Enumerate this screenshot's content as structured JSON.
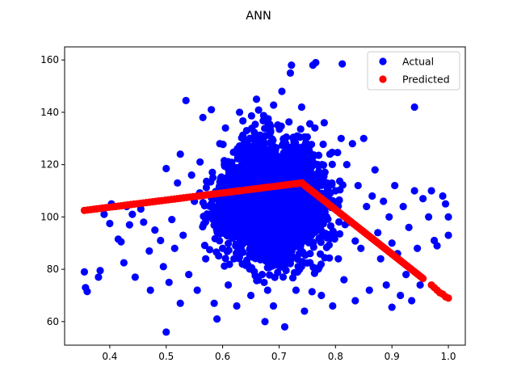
{
  "chart_data": {
    "type": "scatter",
    "title": "ANN",
    "xlabel": "",
    "ylabel": "",
    "xlim": [
      0.32,
      1.03
    ],
    "ylim": [
      51,
      165
    ],
    "x_ticks": [
      "0.4",
      "0.5",
      "0.6",
      "0.7",
      "0.8",
      "0.9",
      "1.0"
    ],
    "y_ticks": [
      "60",
      "80",
      "100",
      "120",
      "140",
      "160"
    ],
    "grid": false,
    "legend_position": "top-right",
    "series": [
      {
        "name": "Actual",
        "color": "#0000ff",
        "points_note": "dense cloud; representative sample",
        "points": [
          [
            0.355,
            79
          ],
          [
            0.357,
            73
          ],
          [
            0.36,
            71.5
          ],
          [
            0.38,
            77
          ],
          [
            0.383,
            79.5
          ],
          [
            0.39,
            101
          ],
          [
            0.4,
            97.5
          ],
          [
            0.403,
            105
          ],
          [
            0.415,
            91.5
          ],
          [
            0.42,
            90.5
          ],
          [
            0.425,
            82.5
          ],
          [
            0.43,
            104
          ],
          [
            0.435,
            97
          ],
          [
            0.44,
            101
          ],
          [
            0.445,
            77
          ],
          [
            0.455,
            103
          ],
          [
            0.46,
            98
          ],
          [
            0.47,
            87
          ],
          [
            0.472,
            72
          ],
          [
            0.48,
            95
          ],
          [
            0.49,
            91
          ],
          [
            0.495,
            81
          ],
          [
            0.5,
            56
          ],
          [
            0.5,
            118.5
          ],
          [
            0.505,
            75
          ],
          [
            0.51,
            99
          ],
          [
            0.515,
            88
          ],
          [
            0.52,
            113
          ],
          [
            0.525,
            67
          ],
          [
            0.525,
            124
          ],
          [
            0.53,
            93
          ],
          [
            0.535,
            144.5
          ],
          [
            0.54,
            78
          ],
          [
            0.545,
            116
          ],
          [
            0.55,
            106
          ],
          [
            0.555,
            72
          ],
          [
            0.56,
            121
          ],
          [
            0.565,
            138
          ],
          [
            0.57,
            84
          ],
          [
            0.575,
            100
          ],
          [
            0.58,
            141
          ],
          [
            0.585,
            67
          ],
          [
            0.59,
            61
          ],
          [
            0.595,
            128
          ],
          [
            0.6,
            88
          ],
          [
            0.6,
            110
          ],
          [
            0.605,
            134
          ],
          [
            0.61,
            74
          ],
          [
            0.615,
            96
          ],
          [
            0.62,
            119
          ],
          [
            0.625,
            66
          ],
          [
            0.63,
            140
          ],
          [
            0.635,
            82
          ],
          [
            0.64,
            104
          ],
          [
            0.645,
            126
          ],
          [
            0.65,
            70
          ],
          [
            0.655,
            92
          ],
          [
            0.66,
            145
          ],
          [
            0.665,
            115
          ],
          [
            0.67,
            78
          ],
          [
            0.675,
            60
          ],
          [
            0.68,
            136
          ],
          [
            0.685,
            98
          ],
          [
            0.69,
            66
          ],
          [
            0.695,
            122
          ],
          [
            0.7,
            88
          ],
          [
            0.705,
            148
          ],
          [
            0.71,
            58
          ],
          [
            0.715,
            108
          ],
          [
            0.72,
            155
          ],
          [
            0.722,
            158
          ],
          [
            0.725,
            130
          ],
          [
            0.73,
            72
          ],
          [
            0.735,
            94
          ],
          [
            0.74,
            142
          ],
          [
            0.745,
            64
          ],
          [
            0.75,
            118
          ],
          [
            0.755,
            86
          ],
          [
            0.76,
            158
          ],
          [
            0.765,
            159
          ],
          [
            0.77,
            102
          ],
          [
            0.775,
            70
          ],
          [
            0.78,
            136
          ],
          [
            0.785,
            92
          ],
          [
            0.79,
            124
          ],
          [
            0.795,
            66
          ],
          [
            0.8,
            110
          ],
          [
            0.805,
            84
          ],
          [
            0.81,
            130
          ],
          [
            0.812,
            158.5
          ],
          [
            0.815,
            76
          ],
          [
            0.82,
            120
          ],
          [
            0.825,
            98
          ],
          [
            0.83,
            128
          ],
          [
            0.835,
            68
          ],
          [
            0.84,
            112
          ],
          [
            0.845,
            88
          ],
          [
            0.85,
            130
          ],
          [
            0.855,
            104
          ],
          [
            0.86,
            72
          ],
          [
            0.865,
            108
          ],
          [
            0.87,
            118
          ],
          [
            0.875,
            94
          ],
          [
            0.88,
            84
          ],
          [
            0.885,
            106
          ],
          [
            0.89,
            74
          ],
          [
            0.895,
            100
          ],
          [
            0.9,
            65.5
          ],
          [
            0.9,
            90
          ],
          [
            0.905,
            112
          ],
          [
            0.91,
            86
          ],
          [
            0.915,
            70
          ],
          [
            0.92,
            104
          ],
          [
            0.925,
            78
          ],
          [
            0.93,
            96
          ],
          [
            0.935,
            68
          ],
          [
            0.94,
            142
          ],
          [
            0.94,
            110
          ],
          [
            0.945,
            88
          ],
          [
            0.95,
            74
          ],
          [
            0.955,
            107
          ],
          [
            0.965,
            100
          ],
          [
            0.97,
            110
          ],
          [
            0.975,
            91
          ],
          [
            0.98,
            89
          ],
          [
            0.99,
            108
          ],
          [
            0.995,
            105
          ],
          [
            1.0,
            93
          ],
          [
            1.0,
            100
          ]
        ]
      },
      {
        "name": "Predicted",
        "color": "#ff0000",
        "points_note": "piecewise-linear prediction curve",
        "line_knots": [
          [
            0.355,
            102.5
          ],
          [
            0.74,
            113
          ],
          [
            0.955,
            76.5
          ]
        ],
        "tail_points": [
          [
            0.97,
            74
          ],
          [
            0.975,
            73
          ],
          [
            0.98,
            72
          ],
          [
            0.985,
            71
          ],
          [
            0.99,
            70.5
          ],
          [
            0.995,
            69.5
          ],
          [
            1.0,
            69
          ]
        ]
      }
    ]
  }
}
